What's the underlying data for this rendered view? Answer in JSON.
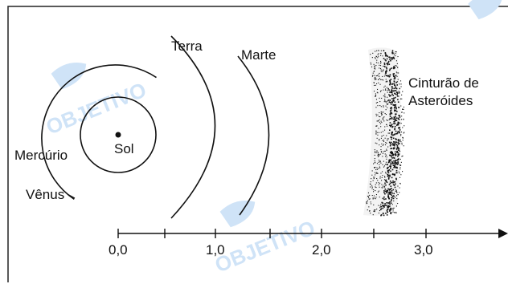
{
  "labels": {
    "sun": "Sol",
    "mercury": "Mercúrio",
    "venus": "Vênus",
    "earth": "Terra",
    "mars": "Marte",
    "belt_line1": "Cinturão de",
    "belt_line2": "Asteróides"
  },
  "axis": {
    "ticks": [
      "0,0",
      "1,0",
      "2,0",
      "3,0"
    ]
  },
  "watermark": "OBJETIVO",
  "colors": {
    "ink": "#111111",
    "watermark": "#cfe3f7",
    "frame": "#222222"
  }
}
